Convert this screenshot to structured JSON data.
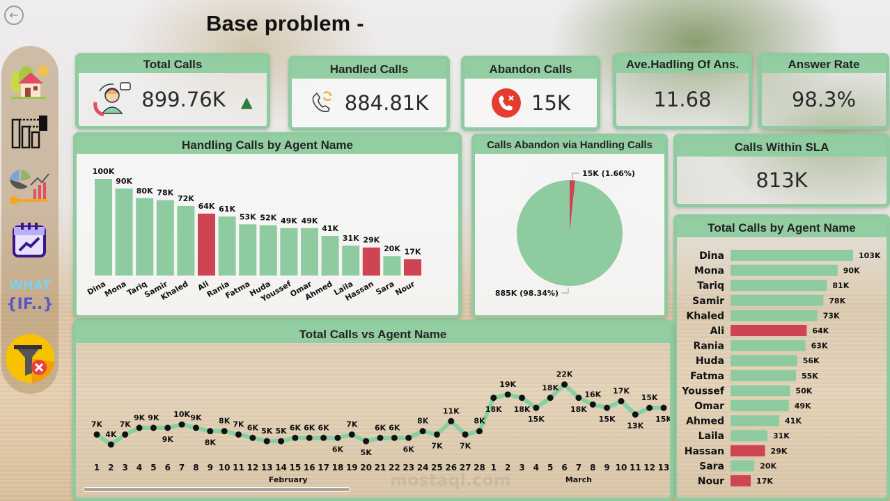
{
  "page": {
    "title": "Base problem -",
    "back_button": "back-arrow-icon",
    "watermark": "mostaql.com"
  },
  "sidebar": {
    "items": [
      {
        "name": "home",
        "icon": "home-icon"
      },
      {
        "name": "agents",
        "icon": "agents-hierarchy-icon"
      },
      {
        "name": "analytics",
        "icon": "analytics-chart-icon"
      },
      {
        "name": "calendar-trend",
        "icon": "calendar-trend-icon"
      },
      {
        "name": "what-if",
        "icon": "what-if-icon",
        "label": "WHAT",
        "sublabel": "{IF..}"
      },
      {
        "name": "clear-filters",
        "icon": "clear-filter-icon"
      }
    ]
  },
  "kpis": {
    "total_calls": {
      "title": "Total Calls",
      "value": "899.76K",
      "trend": "▲",
      "icon": "agent-headset-icon"
    },
    "handled_calls": {
      "title": "Handled Calls",
      "value": "884.81K",
      "icon": "phone-refresh-icon"
    },
    "abandon_calls": {
      "title": "Abandon Calls",
      "value": "15K",
      "icon": "phone-cancel-icon"
    },
    "avg_handling": {
      "title": "Ave.Hadling Of Ans.",
      "value": "11.68"
    },
    "answer_rate": {
      "title": "Answer Rate",
      "value": "98.3%"
    },
    "calls_within_sla": {
      "title": "Calls Within SLA",
      "value": "813K"
    }
  },
  "colors": {
    "accent_green": "#8fcba0",
    "bar_green": "#8fcba0",
    "highlight_red": "#cd4452",
    "line_green": "#86d1a0",
    "dot": "#111111"
  },
  "chart_data": [
    {
      "id": "handling-calls-by-agent",
      "type": "bar",
      "title": "Handling Calls by Agent Name",
      "categories": [
        "Dina",
        "Mona",
        "Tariq",
        "Samir",
        "Khaled",
        "Ali",
        "Rania",
        "Fatma",
        "Huda",
        "Youssef",
        "Omar",
        "Ahmed",
        "Laila",
        "Hassan",
        "Sara",
        "Nour"
      ],
      "values": [
        100,
        90,
        80,
        78,
        72,
        64,
        61,
        53,
        52,
        49,
        49,
        41,
        31,
        29,
        20,
        17
      ],
      "labels": [
        "100K",
        "90K",
        "80K",
        "78K",
        "72K",
        "64K",
        "61K",
        "53K",
        "52K",
        "49K",
        "49K",
        "41K",
        "31K",
        "29K",
        "20K",
        "17K"
      ],
      "highlighted": [
        "Ali",
        "Hassan",
        "Nour"
      ],
      "unit": "K",
      "ylim": [
        0,
        100
      ]
    },
    {
      "id": "calls-abandon-via-handling",
      "type": "pie",
      "title": "Calls Abandon via Handling Calls",
      "slices": [
        {
          "name": "Abandon",
          "value": 15,
          "percent": 1.66,
          "label": "15K (1.66%)",
          "color": "#cd4452"
        },
        {
          "name": "Handled",
          "value": 885,
          "percent": 98.34,
          "label": "885K (98.34%)",
          "color": "#8fcba0"
        }
      ]
    },
    {
      "id": "total-calls-by-agent",
      "type": "bar",
      "orientation": "horizontal",
      "title": "Total Calls by Agent Name",
      "categories": [
        "Dina",
        "Mona",
        "Tariq",
        "Samir",
        "Khaled",
        "Ali",
        "Rania",
        "Huda",
        "Fatma",
        "Youssef",
        "Omar",
        "Ahmed",
        "Laila",
        "Hassan",
        "Sara",
        "Nour"
      ],
      "values": [
        103,
        90,
        81,
        78,
        73,
        64,
        63,
        56,
        55,
        50,
        49,
        41,
        31,
        29,
        20,
        17
      ],
      "labels": [
        "103K",
        "90K",
        "81K",
        "78K",
        "73K",
        "64K",
        "63K",
        "56K",
        "55K",
        "50K",
        "49K",
        "41K",
        "31K",
        "29K",
        "20K",
        "17K"
      ],
      "highlighted": [
        "Ali",
        "Hassan",
        "Nour"
      ],
      "xlim": [
        0,
        103
      ]
    },
    {
      "id": "total-calls-vs-agent-name",
      "type": "line",
      "title": "Total Calls vs Agent Name",
      "x": [
        "1",
        "2",
        "3",
        "4",
        "5",
        "6",
        "7",
        "8",
        "9",
        "10",
        "11",
        "12",
        "13",
        "14",
        "15",
        "16",
        "17",
        "18",
        "19",
        "20",
        "21",
        "22",
        "23",
        "24",
        "25",
        "26",
        "27",
        "28",
        "1",
        "2",
        "3",
        "4",
        "5",
        "6",
        "7",
        "8",
        "9",
        "10",
        "11",
        "12",
        "13"
      ],
      "month_groups": [
        {
          "label": "February",
          "from": 0,
          "to": 27
        },
        {
          "label": "March",
          "from": 28,
          "to": 40
        }
      ],
      "values": [
        7,
        4,
        7,
        9,
        9,
        9,
        10,
        9,
        8,
        8,
        7,
        6,
        5,
        5,
        6,
        6,
        6,
        6,
        7,
        5,
        6,
        6,
        6,
        8,
        7,
        11,
        7,
        8,
        18,
        19,
        18,
        15,
        18,
        22,
        18,
        16,
        15,
        17,
        13,
        15,
        15
      ],
      "labels": [
        "7K",
        "4K",
        "7K",
        "9K",
        "9K",
        "9K",
        "10K",
        "9K",
        "8K",
        "8K",
        "7K",
        "6K",
        "5K",
        "5K",
        "6K",
        "6K",
        "6K",
        "6K",
        "7K",
        "5K",
        "6K",
        "6K",
        "6K",
        "8K",
        "7K",
        "11K",
        "7K",
        "8K",
        "18K",
        "19K",
        "18K",
        "15K",
        "18K",
        "22K",
        "18K",
        "16K",
        "15K",
        "17K",
        "13K",
        "15K",
        "15K"
      ],
      "label_position": [
        "above",
        "above",
        "above",
        "above",
        "above",
        "below",
        "above",
        "above",
        "below",
        "above",
        "above",
        "above",
        "above",
        "above",
        "above",
        "above",
        "above",
        "below",
        "above",
        "below",
        "above",
        "above",
        "below",
        "above",
        "below",
        "above",
        "below",
        "above",
        "below",
        "above",
        "below",
        "below",
        "above",
        "above",
        "below",
        "above",
        "below",
        "above",
        "below",
        "above",
        "below"
      ],
      "ylim": [
        0,
        24
      ],
      "scroll_position": 0.5
    }
  ]
}
